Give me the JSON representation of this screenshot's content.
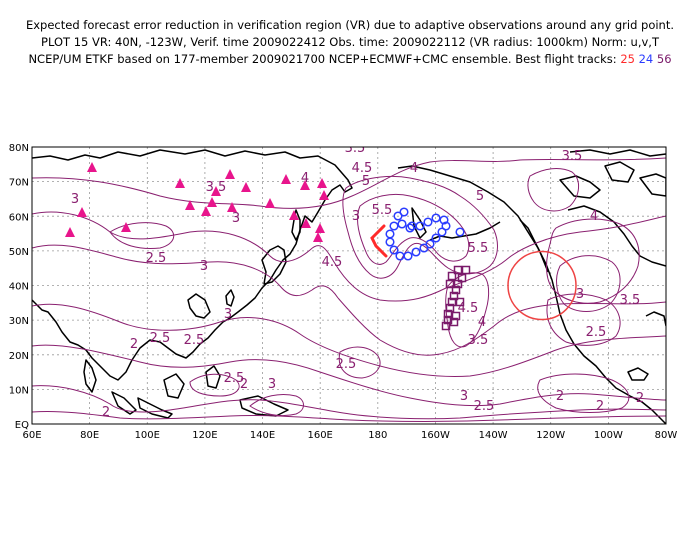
{
  "titles": {
    "line1": "Expected forecast error reduction in verification region (VR) due to adaptive observations around any grid point.",
    "line2": "PLOT 15 VR: 40N, -123W, Verif. time 2009022412 Obs. time: 2009022112 (VR radius: 1000km) Norm: u,v,T",
    "line3_prefix": "NCEP/UM ETKF based on 177-member 2009021700 NCEP+ECMWF+CMC ensemble. Best flight tracks:",
    "track_a": "25",
    "track_b": "24",
    "track_c": "56"
  },
  "colors": {
    "contour": "#8a2070",
    "track_a": "#ff2a2a",
    "track_b": "#2a3cff",
    "track_c": "#7a1a6a",
    "triangles": "#e8158c",
    "vr_circle": "#ee4444"
  },
  "axes": {
    "lat_labels": [
      "80N",
      "70N",
      "60N",
      "50N",
      "40N",
      "30N",
      "20N",
      "10N",
      "EQ"
    ],
    "lon_labels": [
      "60E",
      "80E",
      "100E",
      "120E",
      "140E",
      "160E",
      "180",
      "160W",
      "140W",
      "120W",
      "100W",
      "80W"
    ]
  },
  "contour_labels": [
    "3.5",
    "3.5",
    "4",
    "4.5",
    "5",
    "4",
    "3",
    "3",
    "3.5",
    "4",
    "5.5",
    "5",
    "5.5",
    "4.5",
    "4.5",
    "4",
    "3.5",
    "3.5",
    "3",
    "2.5",
    "3",
    "2.5",
    "3",
    "2.5",
    "2",
    "2.5",
    "2",
    "3",
    "3",
    "2.5",
    "2",
    "3",
    "2.5",
    "2",
    "2.5",
    "2",
    "2"
  ]
}
